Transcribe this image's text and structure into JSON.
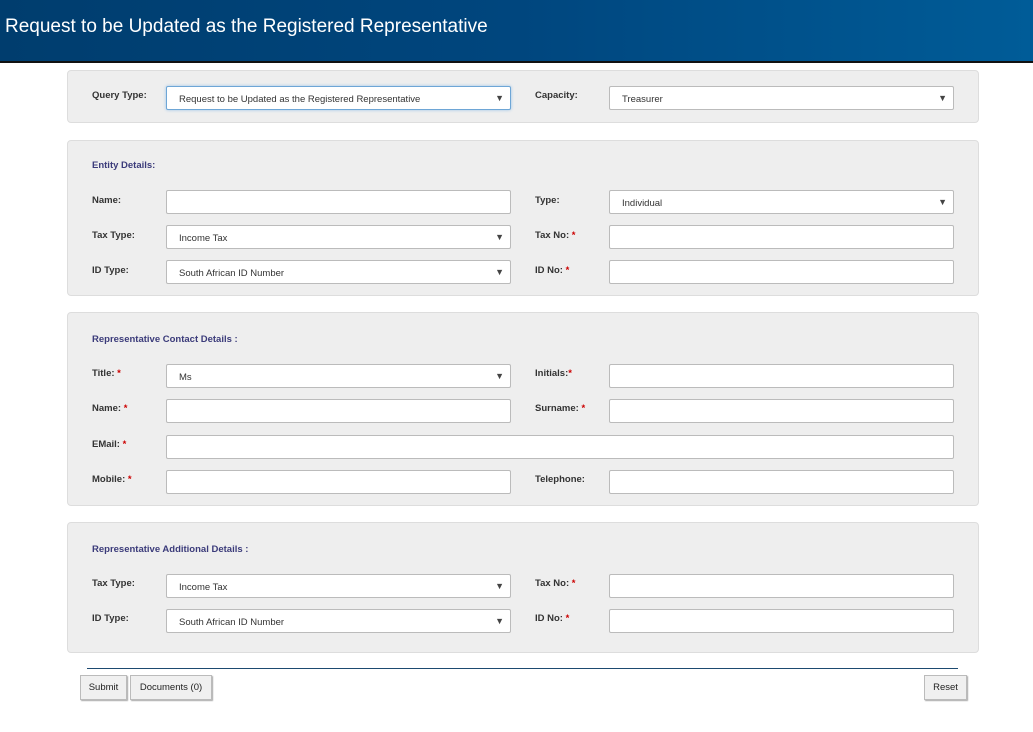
{
  "header": {
    "title": "Request to be Updated as the Registered Representative"
  },
  "query": {
    "query_type_label": "Query Type:",
    "query_type_value": "Request to be Updated as the Registered Representative",
    "capacity_label": "Capacity:",
    "capacity_value": "Treasurer"
  },
  "entity": {
    "title": "Entity Details:",
    "name_label": "Name:",
    "name_value": "",
    "type_label": "Type:",
    "type_value": "Individual",
    "tax_type_label": "Tax Type:",
    "tax_type_value": "Income Tax",
    "tax_no_label": "Tax No:",
    "tax_no_value": "",
    "id_type_label": "ID Type:",
    "id_type_value": "South African ID Number",
    "id_no_label": "ID No:",
    "id_no_value": ""
  },
  "contact": {
    "title": "Representative Contact Details :",
    "title_label": "Title:",
    "title_value": "Ms",
    "initials_label": "Initials:",
    "initials_value": "",
    "name_label": "Name:",
    "name_value": "",
    "surname_label": "Surname:",
    "surname_value": "",
    "email_label": "EMail:",
    "email_value": "",
    "mobile_label": "Mobile:",
    "mobile_value": "",
    "telephone_label": "Telephone:",
    "telephone_value": ""
  },
  "additional": {
    "title": "Representative Additional Details :",
    "tax_type_label": "Tax Type:",
    "tax_type_value": "Income Tax",
    "tax_no_label": "Tax No:",
    "tax_no_value": "",
    "id_type_label": "ID Type:",
    "id_type_value": "South African ID Number",
    "id_no_label": "ID No:",
    "id_no_value": ""
  },
  "required_mark": "*",
  "dropdown_icon": "▼",
  "actions": {
    "submit": "Submit",
    "documents": "Documents (0)",
    "reset": "Reset"
  }
}
